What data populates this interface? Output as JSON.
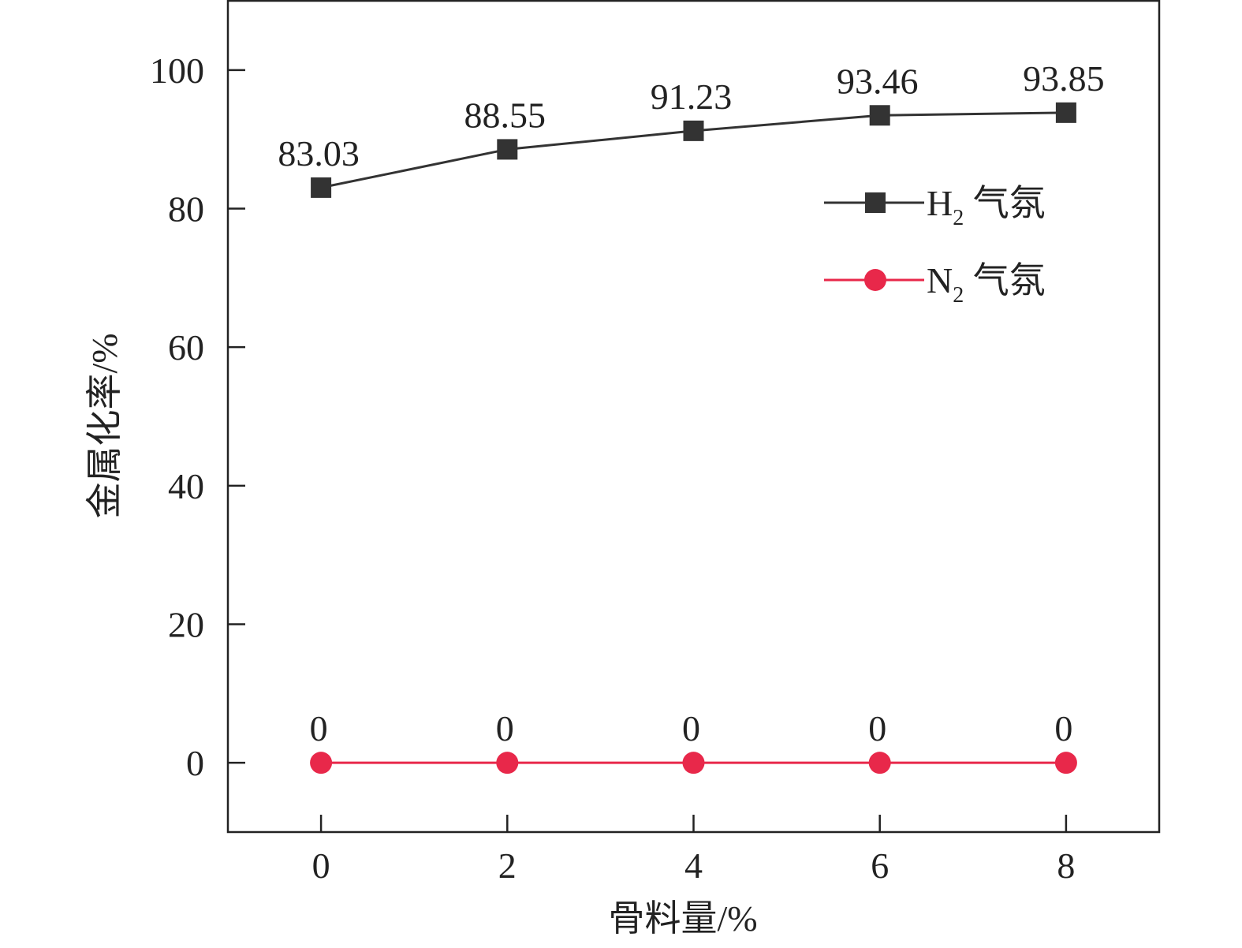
{
  "chart_data": {
    "type": "line",
    "x": [
      0,
      2,
      4,
      6,
      8
    ],
    "xlabel": "骨料量/%",
    "ylabel": "金属化率/%",
    "xlim": [
      -1,
      9
    ],
    "ylim": [
      -10,
      110
    ],
    "xticks": [
      0,
      2,
      4,
      6,
      8
    ],
    "yticks": [
      0,
      20,
      40,
      60,
      80,
      100
    ],
    "grid": false,
    "legend_position": "right, upper-middle",
    "series": [
      {
        "name": "H₂ 气氛",
        "legend_base": "H",
        "legend_sub": "2",
        "legend_suffix": " 气氛",
        "marker": "square",
        "color": "#333333",
        "values": [
          83.03,
          88.55,
          91.23,
          93.46,
          93.85
        ],
        "labels": [
          "83.03",
          "88.55",
          "91.23",
          "93.46",
          "93.85"
        ]
      },
      {
        "name": "N₂ 气氛",
        "legend_base": "N",
        "legend_sub": "2",
        "legend_suffix": " 气氛",
        "marker": "circle",
        "color": "#e8284a",
        "values": [
          0,
          0,
          0,
          0,
          0
        ],
        "labels": [
          "0",
          "0",
          "0",
          "0",
          "0"
        ]
      }
    ]
  }
}
